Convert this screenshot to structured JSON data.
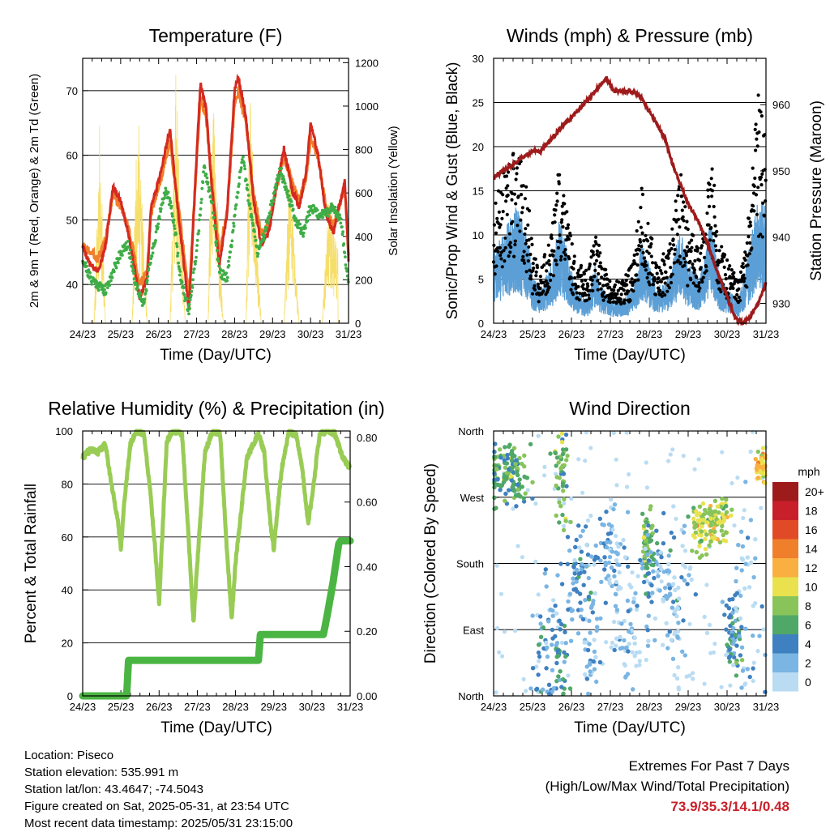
{
  "colors": {
    "temp_2m": "#d42a20",
    "temp_9m": "#f07f2c",
    "dewpoint": "#3fad47",
    "solar": "#f6de6a",
    "wind": "#000000",
    "gust": "#5b9fd6",
    "pressure": "#9e1b1c",
    "rh": "#99cc55",
    "precip": "#4bb543",
    "extremes_values": "#c8202a"
  },
  "chart_data": [
    {
      "type": "line",
      "title": "Temperature (F)",
      "xlabel": "Time (Day/UTC)",
      "ylabel": "2m & 9m T (Red, Orange) & 2m Td (Green)",
      "y2label": "Solar Insolation (Yellow)",
      "xlim": [
        0,
        7
      ],
      "ylim": [
        34,
        75
      ],
      "y2lim": [
        0,
        1220
      ],
      "x_ticks": [
        "24/23",
        "25/23",
        "26/23",
        "27/23",
        "28/23",
        "29/23",
        "30/23",
        "31/23"
      ],
      "y_ticks": [
        40,
        50,
        60,
        70
      ],
      "y2_ticks": [
        0,
        200,
        400,
        600,
        800,
        1000,
        1200
      ],
      "grid": true,
      "series": [
        {
          "name": "2m T",
          "x": [
            0,
            0.2,
            0.4,
            0.6,
            0.8,
            1.0,
            1.2,
            1.5,
            1.7,
            1.8,
            2.0,
            2.3,
            2.5,
            2.8,
            3.0,
            3.1,
            3.25,
            3.4,
            3.6,
            3.8,
            4.0,
            4.1,
            4.3,
            4.5,
            4.7,
            4.9,
            5.1,
            5.3,
            5.5,
            5.7,
            5.9,
            6.0,
            6.2,
            6.4,
            6.6,
            6.75,
            6.9,
            7.0
          ],
          "y": [
            46,
            43,
            42,
            46,
            55,
            53,
            48,
            38,
            41,
            52,
            56,
            64,
            52,
            36,
            60,
            71,
            67,
            55,
            43,
            51,
            70,
            72,
            66,
            53,
            46,
            48,
            55,
            61,
            55,
            52,
            58,
            65,
            60,
            51,
            48,
            52,
            56,
            44
          ]
        },
        {
          "name": "9m T",
          "x": [
            0,
            0.2,
            0.4,
            0.6,
            0.8,
            1.0,
            1.2,
            1.5,
            1.7,
            1.8,
            2.0,
            2.3,
            2.5,
            2.8,
            3.0,
            3.1,
            3.25,
            3.4,
            3.6,
            3.8,
            4.0,
            4.1,
            4.3,
            4.5,
            4.7,
            4.9,
            5.1,
            5.3,
            5.5,
            5.7,
            5.9,
            6.0,
            6.2,
            6.4,
            6.6,
            6.75,
            6.9,
            7.0
          ],
          "y": [
            46,
            45,
            44,
            47,
            54,
            52,
            49,
            40,
            42,
            51,
            55,
            62,
            53,
            38,
            59,
            69,
            66,
            56,
            45,
            51,
            68,
            70,
            65,
            54,
            48,
            49,
            55,
            60,
            56,
            53,
            57,
            63,
            60,
            52,
            49,
            52,
            55,
            45
          ]
        },
        {
          "name": "2m Td",
          "x": [
            0,
            0.2,
            0.4,
            0.6,
            0.8,
            1.0,
            1.2,
            1.4,
            1.6,
            1.8,
            2.0,
            2.2,
            2.4,
            2.6,
            2.8,
            3.0,
            3.2,
            3.4,
            3.6,
            3.8,
            4.0,
            4.2,
            4.4,
            4.6,
            4.8,
            5.0,
            5.2,
            5.4,
            5.6,
            5.8,
            6.0,
            6.2,
            6.4,
            6.6,
            6.8,
            7.0
          ],
          "y": [
            44,
            41,
            40,
            39,
            42,
            45,
            46,
            40,
            37,
            44,
            50,
            55,
            50,
            40,
            36,
            45,
            58,
            53,
            42,
            41,
            50,
            60,
            52,
            45,
            48,
            53,
            58,
            54,
            50,
            48,
            52,
            51,
            51,
            52,
            50,
            40
          ]
        },
        {
          "name": "Solar",
          "x": [
            0,
            0.3,
            0.45,
            0.6,
            1.0,
            1.3,
            1.45,
            1.7,
            2.0,
            2.3,
            2.45,
            2.7,
            3.0,
            3.3,
            3.4,
            3.7,
            4.0,
            4.3,
            4.4,
            4.7,
            5.0,
            5.3,
            5.45,
            5.7,
            6.0,
            6.3,
            6.5,
            6.75,
            7.0
          ],
          "y": [
            0,
            0,
            950,
            0,
            0,
            0,
            1050,
            0,
            0,
            0,
            1180,
            0,
            0,
            0,
            1200,
            0,
            0,
            0,
            1080,
            0,
            0,
            0,
            780,
            0,
            0,
            0,
            640,
            300,
            0
          ]
        }
      ]
    },
    {
      "type": "scatter",
      "title": "Winds (mph) & Pressure (mb)",
      "xlabel": "Time (Day/UTC)",
      "ylabel": "Sonic/Prop Wind & Gust (Blue, Black)",
      "y2label": "Station Pressure (Maroon)",
      "xlim": [
        0,
        7
      ],
      "ylim": [
        0,
        30
      ],
      "y2lim": [
        927,
        967
      ],
      "x_ticks": [
        "24/23",
        "25/23",
        "26/23",
        "27/23",
        "28/23",
        "29/23",
        "30/23",
        "31/23"
      ],
      "y_ticks": [
        0,
        5,
        10,
        15,
        20,
        25,
        30
      ],
      "y2_ticks": [
        930,
        940,
        950,
        960
      ],
      "grid": true,
      "wind_profile": [
        [
          0,
          6
        ],
        [
          0.3,
          8
        ],
        [
          0.6,
          10
        ],
        [
          0.9,
          7
        ],
        [
          1.0,
          4
        ],
        [
          1.2,
          3
        ],
        [
          1.5,
          5
        ],
        [
          1.7,
          9
        ],
        [
          1.9,
          6
        ],
        [
          2.1,
          3
        ],
        [
          2.4,
          2
        ],
        [
          2.6,
          5
        ],
        [
          2.8,
          3
        ],
        [
          3.0,
          2
        ],
        [
          3.3,
          2
        ],
        [
          3.6,
          3
        ],
        [
          3.8,
          7
        ],
        [
          4.0,
          5
        ],
        [
          4.2,
          3
        ],
        [
          4.5,
          4
        ],
        [
          4.8,
          8
        ],
        [
          5.0,
          5
        ],
        [
          5.3,
          4
        ],
        [
          5.6,
          9
        ],
        [
          5.8,
          4
        ],
        [
          6.0,
          3
        ],
        [
          6.3,
          2
        ],
        [
          6.5,
          5
        ],
        [
          6.8,
          11
        ],
        [
          7.0,
          10
        ]
      ],
      "gust_profile": [
        [
          0,
          11
        ],
        [
          0.3,
          15
        ],
        [
          0.6,
          17
        ],
        [
          0.9,
          12
        ],
        [
          1.0,
          7
        ],
        [
          1.2,
          5
        ],
        [
          1.5,
          9
        ],
        [
          1.7,
          16
        ],
        [
          1.9,
          10
        ],
        [
          2.1,
          6
        ],
        [
          2.4,
          5
        ],
        [
          2.6,
          9
        ],
        [
          2.8,
          6
        ],
        [
          3.0,
          4
        ],
        [
          3.3,
          4
        ],
        [
          3.6,
          6
        ],
        [
          3.8,
          14
        ],
        [
          4.0,
          9
        ],
        [
          4.2,
          6
        ],
        [
          4.5,
          7
        ],
        [
          4.8,
          15
        ],
        [
          5.0,
          9
        ],
        [
          5.3,
          8
        ],
        [
          5.6,
          16
        ],
        [
          5.8,
          8
        ],
        [
          6.0,
          6
        ],
        [
          6.3,
          4
        ],
        [
          6.5,
          8
        ],
        [
          6.8,
          22
        ],
        [
          7.0,
          18
        ]
      ],
      "series": [
        {
          "name": "Station Pressure",
          "x": [
            0,
            0.5,
            1.0,
            1.2,
            1.5,
            1.8,
            2.0,
            2.3,
            2.6,
            2.9,
            3.1,
            3.4,
            3.6,
            3.8,
            4.1,
            4.4,
            4.6,
            4.8,
            5.0,
            5.3,
            5.5,
            5.8,
            6.0,
            6.2,
            6.4,
            6.6,
            6.8,
            7.0
          ],
          "y": [
            949,
            951,
            953,
            953,
            955,
            957,
            958,
            960,
            962,
            964,
            962,
            962,
            962,
            961,
            958,
            955,
            951,
            948,
            945,
            942,
            939,
            934,
            931,
            928,
            927,
            928,
            930,
            933
          ]
        }
      ]
    },
    {
      "type": "line",
      "title": "Relative Humidity (%) & Precipitation (in)",
      "xlabel": "Time (Day/UTC)",
      "ylabel": "Percent & Total Rainfall",
      "xlim": [
        0,
        7
      ],
      "ylim": [
        0,
        100
      ],
      "y2lim": [
        0,
        0.82
      ],
      "x_ticks": [
        "24/23",
        "25/23",
        "26/23",
        "27/23",
        "28/23",
        "29/23",
        "30/23",
        "31/23"
      ],
      "y_ticks": [
        0,
        20,
        40,
        60,
        80,
        100
      ],
      "y2_ticks": [
        "0.00",
        "0.20",
        "0.40",
        "0.60",
        "0.80"
      ],
      "grid": true,
      "series": [
        {
          "name": "RH",
          "x": [
            0,
            0.2,
            0.4,
            0.6,
            0.75,
            0.9,
            1.0,
            1.1,
            1.25,
            1.4,
            1.6,
            1.75,
            1.9,
            2.0,
            2.1,
            2.2,
            2.35,
            2.6,
            2.75,
            2.9,
            3.0,
            3.2,
            3.4,
            3.6,
            3.75,
            3.9,
            4.0,
            4.3,
            4.6,
            4.75,
            4.9,
            5.0,
            5.2,
            5.4,
            5.6,
            5.75,
            5.9,
            6.0,
            6.2,
            6.4,
            6.6,
            6.8,
            7.0
          ],
          "y": [
            90,
            93,
            92,
            95,
            80,
            68,
            56,
            75,
            95,
            100,
            99,
            80,
            55,
            35,
            65,
            96,
            100,
            99,
            65,
            28,
            50,
            92,
            100,
            99,
            60,
            29,
            50,
            90,
            99,
            92,
            67,
            55,
            85,
            100,
            98,
            85,
            65,
            75,
            99,
            100,
            99,
            90,
            86
          ]
        },
        {
          "name": "Precipitation",
          "x": [
            0,
            1.15,
            1.2,
            4.6,
            4.65,
            6.3,
            6.4,
            6.55,
            6.7,
            6.75,
            7.0
          ],
          "y": [
            0,
            0,
            0.11,
            0.11,
            0.19,
            0.19,
            0.25,
            0.35,
            0.47,
            0.48,
            0.48
          ]
        }
      ]
    },
    {
      "type": "scatter",
      "title": "Wind Direction",
      "xlabel": "Time (Day/UTC)",
      "ylabel": "Direction (Colored By Speed)",
      "xlim": [
        0,
        7
      ],
      "ylim": [
        0,
        360
      ],
      "x_ticks": [
        "24/23",
        "25/23",
        "26/23",
        "27/23",
        "28/23",
        "29/23",
        "30/23",
        "31/23"
      ],
      "y_ticks": [
        "North",
        "East",
        "South",
        "West",
        "North"
      ],
      "grid": true,
      "clusters": [
        {
          "x": 0.35,
          "y": 300,
          "sx": 0.35,
          "sy": 30,
          "n": 130,
          "s": 6
        },
        {
          "x": 1.35,
          "y": 70,
          "sx": 0.3,
          "sy": 70,
          "n": 55,
          "s": 3
        },
        {
          "x": 1.75,
          "y": 300,
          "sx": 0.15,
          "sy": 50,
          "n": 50,
          "s": 7
        },
        {
          "x": 1.75,
          "y": 60,
          "sx": 0.2,
          "sy": 45,
          "n": 35,
          "s": 5
        },
        {
          "x": 2.2,
          "y": 170,
          "sx": 0.25,
          "sy": 40,
          "n": 60,
          "s": 3
        },
        {
          "x": 2.5,
          "y": 80,
          "sx": 0.2,
          "sy": 60,
          "n": 40,
          "s": 2
        },
        {
          "x": 3.0,
          "y": 190,
          "sx": 0.3,
          "sy": 50,
          "n": 70,
          "s": 2
        },
        {
          "x": 3.5,
          "y": 80,
          "sx": 0.3,
          "sy": 60,
          "n": 55,
          "s": 1
        },
        {
          "x": 3.95,
          "y": 200,
          "sx": 0.1,
          "sy": 30,
          "n": 60,
          "s": 7
        },
        {
          "x": 4.1,
          "y": 160,
          "sx": 0.35,
          "sy": 40,
          "n": 45,
          "s": 4
        },
        {
          "x": 4.6,
          "y": 150,
          "sx": 0.4,
          "sy": 80,
          "n": 70,
          "s": 1
        },
        {
          "x": 5.35,
          "y": 230,
          "sx": 0.25,
          "sy": 25,
          "n": 70,
          "s": 9
        },
        {
          "x": 5.8,
          "y": 240,
          "sx": 0.2,
          "sy": 25,
          "n": 60,
          "s": 9
        },
        {
          "x": 6.15,
          "y": 80,
          "sx": 0.15,
          "sy": 40,
          "n": 55,
          "s": 4
        },
        {
          "x": 6.5,
          "y": 140,
          "sx": 0.3,
          "sy": 100,
          "n": 40,
          "s": 1
        },
        {
          "x": 6.9,
          "y": 310,
          "sx": 0.1,
          "sy": 15,
          "n": 50,
          "s": 11
        }
      ],
      "colorbar": {
        "title": "mph",
        "labels": [
          "20+",
          "18",
          "16",
          "14",
          "12",
          "10",
          "8",
          "6",
          "4",
          "2",
          "0"
        ],
        "colors": [
          "#9e1b1c",
          "#c8202a",
          "#e14a26",
          "#f07f2c",
          "#f9b041",
          "#e9e24e",
          "#88c45a",
          "#4fa868",
          "#3f80c0",
          "#7ab5e3",
          "#b9dcf3"
        ]
      }
    }
  ],
  "info": {
    "location": "Location: Piseco",
    "elevation": "Station elevation: 535.991 m",
    "latlon": "Station lat/lon: 43.4647; -74.5043",
    "created": "Figure created on Sat, 2025-05-31, at 23:54 UTC",
    "recent": "Most recent data timestamp: 2025/05/31 23:15:00"
  },
  "extremes": {
    "title": "Extremes For Past 7 Days",
    "subtitle": "(High/Low/Max Wind/Total Precipitation)",
    "values": "73.9/35.3/14.1/0.48"
  }
}
